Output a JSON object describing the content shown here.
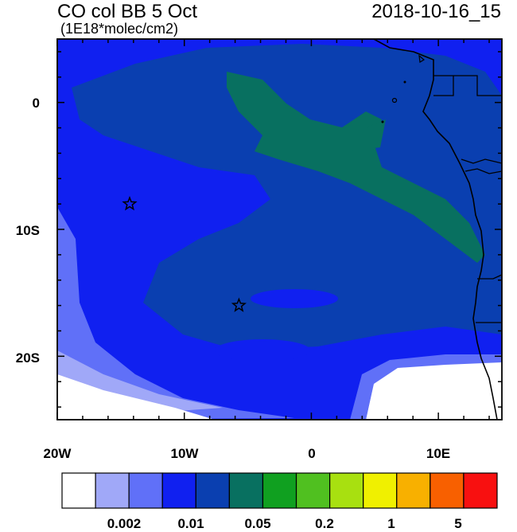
{
  "title": {
    "left": "CO col BB 5 Oct",
    "units": "(1E18*molec/cm2)",
    "right": "2018-10-16_15"
  },
  "axes": {
    "y_labels": [
      "0",
      "10S",
      "20S"
    ],
    "x_labels": [
      "20W",
      "10W",
      "0",
      "10E"
    ]
  },
  "colorbar": {
    "colors": [
      "#ffffff",
      "#a0a8f8",
      "#6070f8",
      "#1020f0",
      "#0a3fb0",
      "#087060",
      "#10a020",
      "#50c020",
      "#a8e010",
      "#f0f000",
      "#f8b000",
      "#f86000",
      "#f81010"
    ],
    "labels": [
      "0.002",
      "0.01",
      "0.05",
      "0.2",
      "1",
      "5"
    ]
  },
  "markers": [
    {
      "name": "star",
      "lon": -14.3,
      "lat": -8.0
    },
    {
      "name": "star",
      "lon": -5.7,
      "lat": -16.0
    }
  ]
}
